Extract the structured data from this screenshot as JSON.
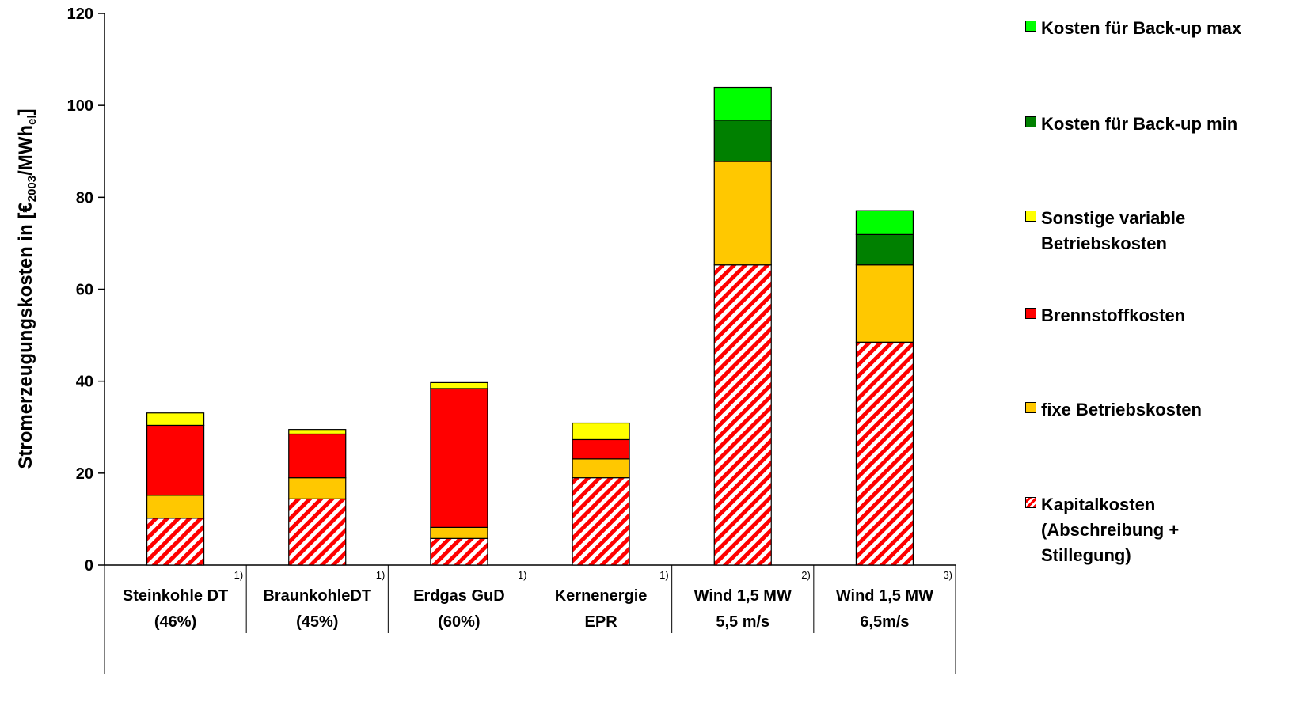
{
  "chart_data": {
    "type": "bar",
    "stacked": true,
    "ylabel": "Stromerzeugungskosten in [€2003/MWhel]",
    "ylim": [
      0,
      120
    ],
    "yticks": [
      0,
      20,
      40,
      60,
      80,
      100,
      120
    ],
    "grid": false,
    "legend_position": "right",
    "categories": [
      {
        "line1": "Steinkohle DT",
        "line2": "(46%)",
        "footnote": "1)"
      },
      {
        "line1": "BraunkohleDT",
        "line2": "(45%)",
        "footnote": "1)"
      },
      {
        "line1": "Erdgas GuD",
        "line2": "(60%)",
        "footnote": "1)"
      },
      {
        "line1": "Kernenergie",
        "line2": "EPR",
        "footnote": "1)"
      },
      {
        "line1": "Wind 1,5 MW",
        "line2": "5,5 m/s",
        "footnote": "2)"
      },
      {
        "line1": "Wind 1,5 MW",
        "line2": "6,5m/s",
        "footnote": "3)"
      }
    ],
    "series": [
      {
        "name": "Kapitalkosten\n(Abschreibung +\nStillegung)",
        "color": "#ff0000",
        "pattern": "hatch",
        "values": [
          10.2,
          14.4,
          5.8,
          19.0,
          65.3,
          48.5
        ]
      },
      {
        "name": "fixe Betriebskosten",
        "color": "#ffc800",
        "values": [
          5.0,
          4.6,
          2.4,
          4.1,
          22.5,
          16.8
        ]
      },
      {
        "name": "Brennstoffkosten",
        "color": "#ff0000",
        "values": [
          15.2,
          9.5,
          30.2,
          4.2,
          0,
          0
        ]
      },
      {
        "name": "Sonstige variable\nBetriebskosten",
        "color": "#ffff00",
        "values": [
          2.7,
          1.0,
          1.3,
          3.6,
          0,
          0
        ]
      },
      {
        "name": "Kosten für Back-up min",
        "color": "#008000",
        "values": [
          0,
          0,
          0,
          0,
          9.0,
          6.6
        ]
      },
      {
        "name": "Kosten für Back-up max",
        "color": "#00ff00",
        "values": [
          0,
          0,
          0,
          0,
          7.1,
          5.2
        ]
      }
    ]
  }
}
